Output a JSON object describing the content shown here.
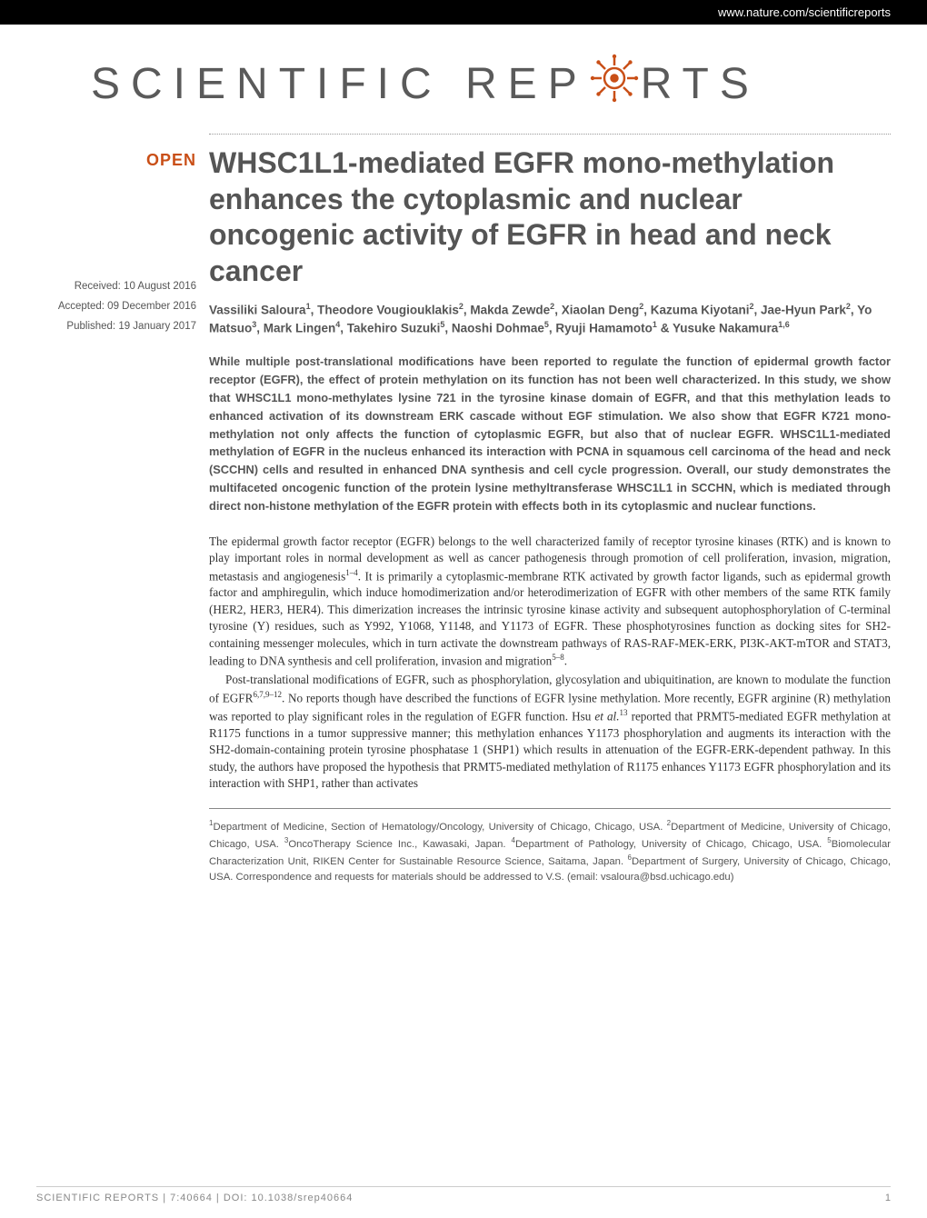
{
  "header": {
    "url": "www.nature.com/scientificreports"
  },
  "logo": {
    "text_before": "SCIENTIFIC REP",
    "text_after": "RTS",
    "gear_color": "#c94f17"
  },
  "badge": {
    "open": "OPEN"
  },
  "dates": {
    "received": "Received: 10 August 2016",
    "accepted": "Accepted: 09 December 2016",
    "published": "Published: 19 January 2017"
  },
  "article": {
    "title": "WHSC1L1-mediated EGFR mono-methylation enhances the cytoplasmic and nuclear oncogenic activity of EGFR in head and neck cancer",
    "authors_html": "Vassiliki Saloura<sup>1</sup>, Theodore Vougiouklakis<sup>2</sup>, Makda Zewde<sup>2</sup>, Xiaolan Deng<sup>2</sup>, Kazuma Kiyotani<sup>2</sup>, Jae-Hyun Park<sup>2</sup>, Yo Matsuo<sup>3</sup>, Mark Lingen<sup>4</sup>, Takehiro Suzuki<sup>5</sup>, Naoshi Dohmae<sup>5</sup>, Ryuji Hamamoto<sup>1</sup> & Yusuke Nakamura<sup>1,6</sup>",
    "abstract": "While multiple post-translational modifications have been reported to regulate the function of epidermal growth factor receptor (EGFR), the effect of protein methylation on its function has not been well characterized. In this study, we show that WHSC1L1 mono-methylates lysine 721 in the tyrosine kinase domain of EGFR, and that this methylation leads to enhanced activation of its downstream ERK cascade without EGF stimulation. We also show that EGFR K721 mono-methylation not only affects the function of cytoplasmic EGFR, but also that of nuclear EGFR. WHSC1L1-mediated methylation of EGFR in the nucleus enhanced its interaction with PCNA in squamous cell carcinoma of the head and neck (SCCHN) cells and resulted in enhanced DNA synthesis and cell cycle progression. Overall, our study demonstrates the multifaceted oncogenic function of the protein lysine methyltransferase WHSC1L1 in SCCHN, which is mediated through direct non-histone methylation of the EGFR protein with effects both in its cytoplasmic and nuclear functions.",
    "body_p1": "The epidermal growth factor receptor (EGFR) belongs to the well characterized family of receptor tyrosine kinases (RTK) and is known to play important roles in normal development as well as cancer pathogenesis through promotion of cell proliferation, invasion, migration, metastasis and angiogenesis<sup>1–4</sup>. It is primarily a cytoplasmic-membrane RTK activated by growth factor ligands, such as epidermal growth factor and amphiregulin, which induce homodimerization and/or heterodimerization of EGFR with other members of the same RTK family (HER2, HER3, HER4). This dimerization increases the intrinsic tyrosine kinase activity and subsequent autophosphorylation of C-terminal tyrosine (Y) residues, such as Y992, Y1068, Y1148, and Y1173 of EGFR. These phosphotyrosines function as docking sites for SH2-containing messenger molecules, which in turn activate the downstream pathways of RAS-RAF-MEK-ERK, PI3K-AKT-mTOR and STAT3, leading to DNA synthesis and cell proliferation, invasion and migration<sup>5–8</sup>.",
    "body_p2": "Post-translational modifications of EGFR, such as phosphorylation, glycosylation and ubiquitination, are known to modulate the function of EGFR<sup>6,7,9–12</sup>. No reports though have described the functions of EGFR lysine methylation. More recently, EGFR arginine (R) methylation was reported to play significant roles in the regulation of EGFR function. Hsu <em>et al.</em><sup>13</sup> reported that PRMT5-mediated EGFR methylation at R1175 functions in a tumor suppressive manner; this methylation enhances Y1173 phosphorylation and augments its interaction with the SH2-domain-containing protein tyrosine phosphatase 1 (SHP1) which results in attenuation of the EGFR-ERK-dependent pathway. In this study, the authors have proposed the hypothesis that PRMT5-mediated methylation of R1175 enhances Y1173 EGFR phosphorylation and its interaction with SHP1, rather than activates",
    "affiliations": "<sup>1</sup>Department of Medicine, Section of Hematology/Oncology, University of Chicago, Chicago, USA. <sup>2</sup>Department of Medicine, University of Chicago, Chicago, USA. <sup>3</sup>OncoTherapy Science Inc., Kawasaki, Japan. <sup>4</sup>Department of Pathology, University of Chicago, Chicago, USA. <sup>5</sup>Biomolecular Characterization Unit, RIKEN Center for Sustainable Resource Science, Saitama, Japan. <sup>6</sup>Department of Surgery, University of Chicago, Chicago, USA. Correspondence and requests for materials should be addressed to V.S. (email: vsaloura@bsd.uchicago.edu)"
  },
  "footer": {
    "citation": "SCIENTIFIC REPORTS | 7:40664 | DOI: 10.1038/srep40664",
    "page": "1"
  },
  "colors": {
    "accent": "#c94f17",
    "text_gray": "#555555",
    "body_text": "#333333",
    "logo_gray": "#5a5a5a"
  }
}
